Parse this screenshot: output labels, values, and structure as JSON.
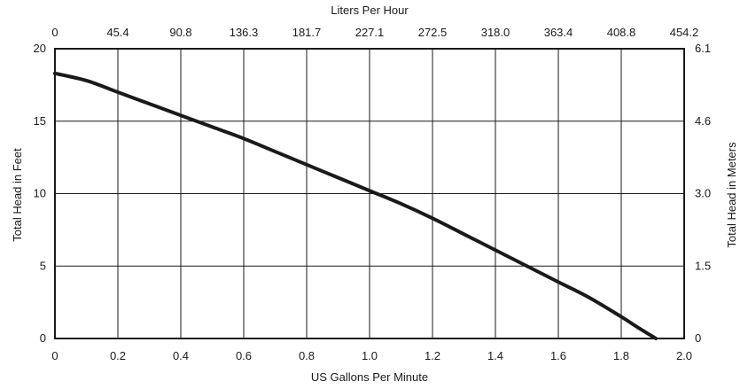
{
  "chart_data": {
    "type": "line",
    "title": "",
    "xlabel": "US Gallons Per Minute",
    "ylabel": "Total Head in Feet",
    "x2label": "Liters Per Hour",
    "y2label": "Total Head in Meters",
    "xlim": [
      0,
      2.0
    ],
    "ylim": [
      0,
      20
    ],
    "grid": true,
    "x_ticks": [
      "0",
      "0.2",
      "0.4",
      "0.6",
      "0.8",
      "1.0",
      "1.2",
      "1.4",
      "1.6",
      "1.8",
      "2.0"
    ],
    "x_tick_values": [
      0,
      0.2,
      0.4,
      0.6,
      0.8,
      1.0,
      1.2,
      1.4,
      1.6,
      1.8,
      2.0
    ],
    "x2_ticks": [
      "0",
      "45.4",
      "90.8",
      "136.3",
      "181.7",
      "227.1",
      "272.5",
      "318.0",
      "363.4",
      "408.8",
      "454.2"
    ],
    "y_ticks": [
      "0",
      "5",
      "10",
      "15",
      "20"
    ],
    "y_tick_values": [
      0,
      5,
      10,
      15,
      20
    ],
    "y2_ticks": [
      "0",
      "1.5",
      "3.0",
      "4.6",
      "6.1"
    ],
    "series": [
      {
        "color": "#1a1a1a",
        "x": [
          0,
          0.1,
          0.2,
          0.3,
          0.4,
          0.5,
          0.6,
          0.7,
          0.8,
          0.9,
          1.0,
          1.1,
          1.2,
          1.3,
          1.4,
          1.5,
          1.6,
          1.7,
          1.8,
          1.85,
          1.91
        ],
        "y": [
          18.3,
          17.8,
          17.0,
          16.2,
          15.4,
          14.6,
          13.8,
          12.9,
          12.0,
          11.1,
          10.2,
          9.3,
          8.3,
          7.2,
          6.1,
          5.0,
          3.9,
          2.8,
          1.5,
          0.8,
          0
        ]
      }
    ]
  }
}
